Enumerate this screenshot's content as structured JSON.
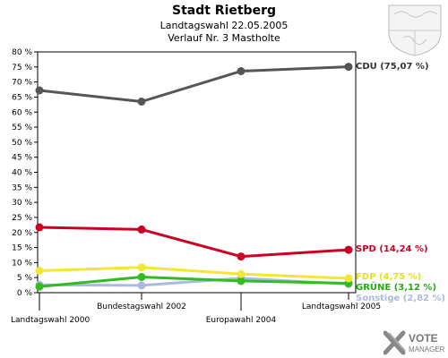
{
  "header": {
    "title": "Stadt Rietberg",
    "subtitle": "Landtagswahl 22.05.2005",
    "subtitle2": "Verlauf Nr. 3 Mastholte"
  },
  "branding": {
    "logo_line1": "VOTE",
    "logo_line2": "MANAGER",
    "crest_icon": "nrw-coat-of-arms-icon"
  },
  "chart_data": {
    "type": "line",
    "title": "Stadt Rietberg",
    "x_categories": [
      "Landtagswahl 2000",
      "Bundestagswahl 2002",
      "Europawahl 2004",
      "Landtagswahl 2005"
    ],
    "y_ticks": [
      "0 %",
      "5 %",
      "10 %",
      "15 %",
      "20 %",
      "25 %",
      "30 %",
      "35 %",
      "40 %",
      "45 %",
      "50 %",
      "55 %",
      "60 %",
      "65 %",
      "70 %",
      "75 %",
      "80 %"
    ],
    "ylim": [
      0,
      80
    ],
    "grid": false,
    "series": [
      {
        "name": "CDU",
        "label": "CDU (75,07 %)",
        "color": "#555555",
        "values": [
          67.2,
          63.5,
          73.6,
          75.07
        ]
      },
      {
        "name": "SPD",
        "label": "SPD (14,24 %)",
        "color": "#cc0022",
        "values": [
          21.7,
          21.0,
          12.0,
          14.24
        ]
      },
      {
        "name": "FDP",
        "label": "FDP (4,75 %)",
        "color": "#f0e832",
        "values": [
          7.3,
          8.4,
          6.2,
          4.75
        ]
      },
      {
        "name": "GRÜNE",
        "label": "GRÜNE (3,12 %)",
        "color": "#33bb22",
        "values": [
          2.0,
          5.2,
          3.9,
          3.12
        ]
      },
      {
        "name": "Sonstige",
        "label": "Sonstige (2,82 %)",
        "color": "#aabbdd",
        "values": [
          2.6,
          2.4,
          4.8,
          2.82
        ]
      }
    ]
  }
}
